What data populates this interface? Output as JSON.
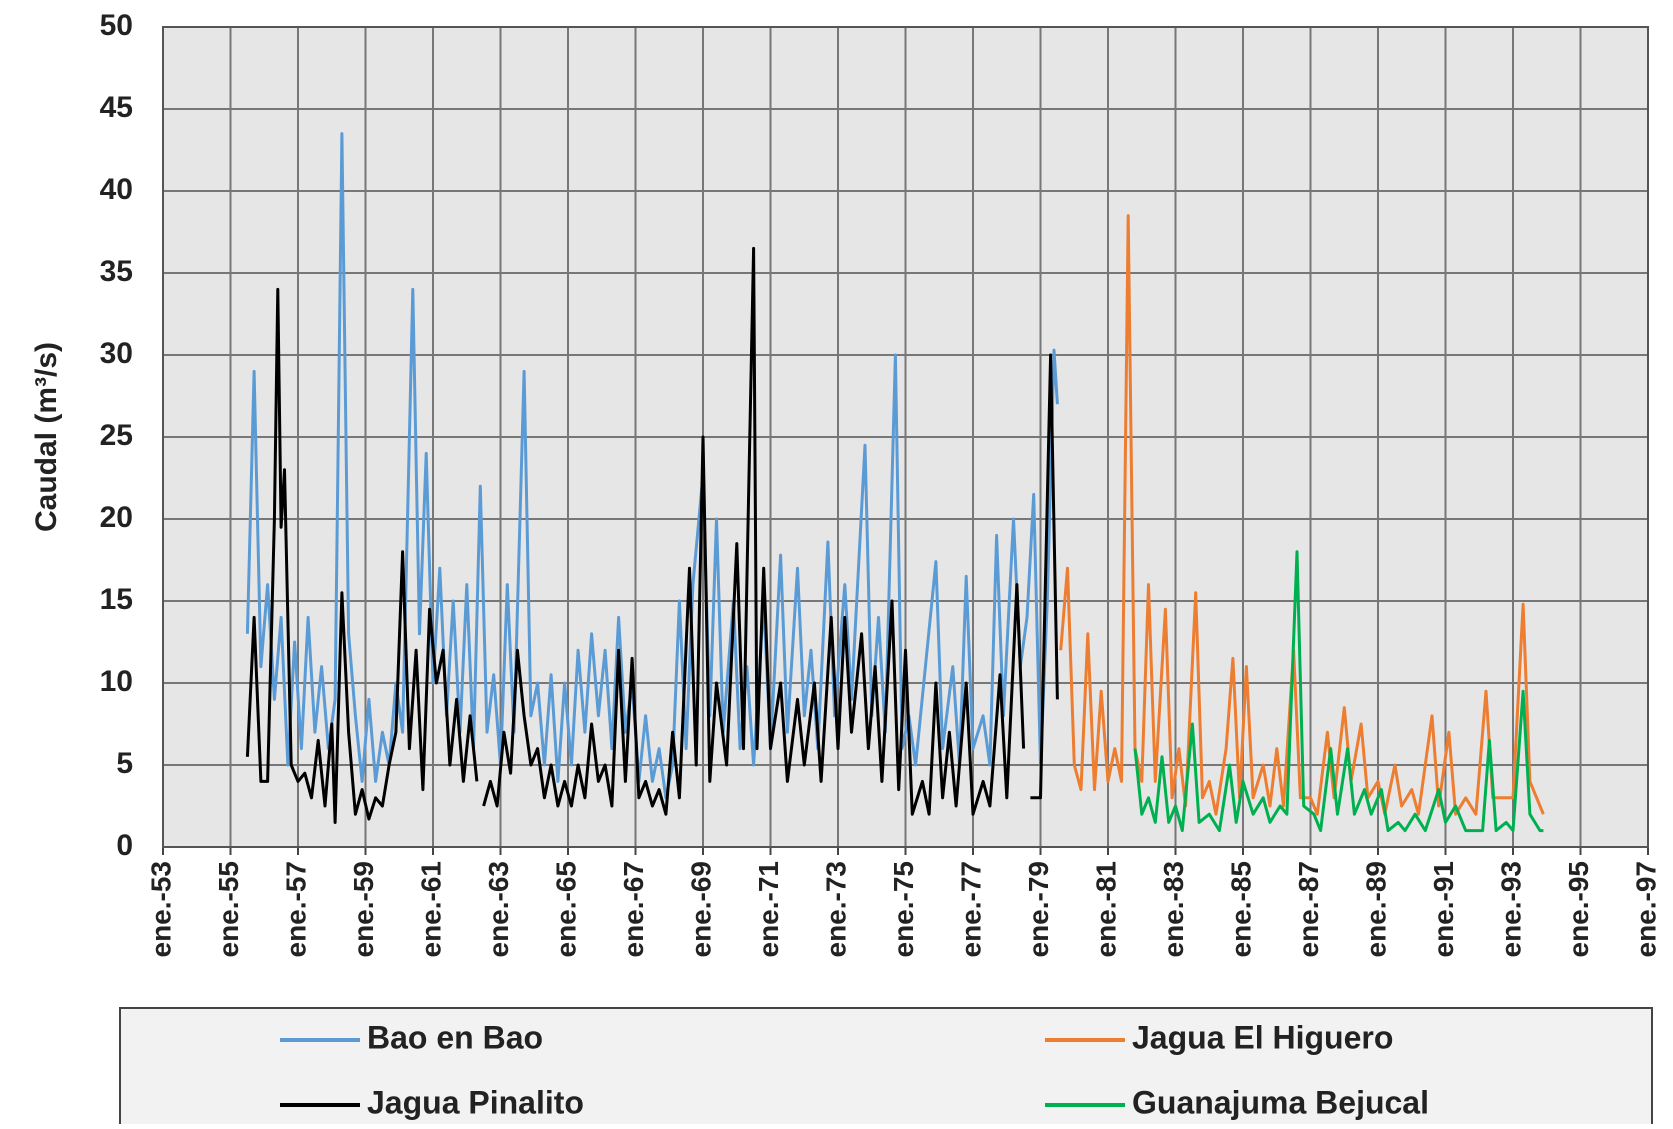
{
  "chart_data": {
    "type": "line",
    "y_label": "Caudal (m³/s)",
    "xlim": [
      1953,
      1997
    ],
    "xticks": [
      {
        "value": 1953,
        "label": "ene.-53"
      },
      {
        "value": 1955,
        "label": "ene.-55"
      },
      {
        "value": 1957,
        "label": "ene.-57"
      },
      {
        "value": 1959,
        "label": "ene.-59"
      },
      {
        "value": 1961,
        "label": "ene.-61"
      },
      {
        "value": 1963,
        "label": "ene.-63"
      },
      {
        "value": 1965,
        "label": "ene.-65"
      },
      {
        "value": 1967,
        "label": "ene.-67"
      },
      {
        "value": 1969,
        "label": "ene.-69"
      },
      {
        "value": 1971,
        "label": "ene.-71"
      },
      {
        "value": 1973,
        "label": "ene.-73"
      },
      {
        "value": 1975,
        "label": "ene.-75"
      },
      {
        "value": 1977,
        "label": "ene.-77"
      },
      {
        "value": 1979,
        "label": "ene.-79"
      },
      {
        "value": 1981,
        "label": "ene.-81"
      },
      {
        "value": 1983,
        "label": "ene.-83"
      },
      {
        "value": 1985,
        "label": "ene.-85"
      },
      {
        "value": 1987,
        "label": "ene.-87"
      },
      {
        "value": 1989,
        "label": "ene.-89"
      },
      {
        "value": 1991,
        "label": "ene.-91"
      },
      {
        "value": 1993,
        "label": "ene.-93"
      },
      {
        "value": 1995,
        "label": "ene.-95"
      },
      {
        "value": 1997,
        "label": "ene.-97"
      }
    ],
    "ylim": [
      0,
      50
    ],
    "yticks": [
      0,
      5,
      10,
      15,
      20,
      25,
      30,
      35,
      40,
      45,
      50
    ],
    "grid": true,
    "legend": "bottom",
    "series": [
      {
        "name": "Bao en Bao",
        "color": "#5b9bd5",
        "x": [
          1955.5,
          1955.7,
          1955.9,
          1956.1,
          1956.3,
          1956.5,
          1956.7,
          1956.9,
          1957.1,
          1957.3,
          1957.5,
          1957.7,
          1957.9,
          1958.1,
          1958.3,
          1958.5,
          1958.7,
          1958.9,
          1959.1,
          1959.3,
          1959.5,
          1959.7,
          1959.9,
          1960.1,
          1960.4,
          1960.6,
          1960.8,
          1961.0,
          1961.2,
          1961.4,
          1961.6,
          1961.8,
          1962.0,
          1962.2,
          1962.4,
          1962.6,
          1962.8,
          1963.0,
          1963.2,
          1963.4,
          1963.7,
          1963.9,
          1964.1,
          1964.3,
          1964.5,
          1964.7,
          1964.9,
          1965.1,
          1965.3,
          1965.5,
          1965.7,
          1965.9,
          1966.1,
          1966.3,
          1966.5,
          1966.7,
          1966.9,
          1967.1,
          1967.3,
          1967.5,
          1967.7,
          1967.9,
          1968.1,
          1968.3,
          1968.5,
          1968.7,
          1969.0,
          1969.2,
          1969.4,
          1969.6,
          1969.9,
          1970.1,
          1970.3,
          1970.5,
          1970.8,
          1971.0,
          1971.3,
          1971.5,
          1971.8,
          1972.0,
          1972.2,
          1972.4,
          1972.7,
          1972.9,
          1973.2,
          1973.4,
          1973.8,
          1974.0,
          1974.2,
          1974.4,
          1974.7,
          1974.9,
          1975.1,
          1975.3,
          1975.9,
          1976.1,
          1976.4,
          1976.6,
          1976.8,
          1977.0,
          1977.3,
          1977.5,
          1977.7,
          1977.9,
          1978.2,
          1978.4,
          1978.6,
          1978.8,
          1979.0,
          1979.2,
          1979.4,
          1979.5
        ],
        "values": [
          13,
          29,
          11,
          16,
          9,
          14,
          5,
          12.5,
          6,
          14,
          7,
          11,
          6,
          9,
          43.5,
          13,
          8,
          4,
          9,
          4,
          7,
          5,
          10,
          7,
          34,
          13,
          24,
          10,
          17,
          8,
          15,
          7,
          16,
          6,
          22,
          7,
          10.5,
          5,
          16,
          7,
          29,
          8,
          10,
          5,
          10.5,
          4,
          10,
          5,
          12,
          7,
          13,
          8,
          12,
          6,
          14,
          7,
          10,
          4,
          8,
          4,
          6,
          3,
          5,
          15,
          6,
          16,
          22.7,
          8,
          20,
          7,
          15,
          6,
          11,
          5,
          15,
          6,
          17.8,
          7,
          17,
          8,
          12,
          6,
          18.6,
          8,
          16,
          9,
          24.5,
          8,
          14,
          7,
          30,
          6,
          8,
          5,
          17.4,
          6,
          11,
          5,
          16.5,
          6,
          8,
          5,
          19,
          8,
          20,
          11,
          14,
          21.5,
          5,
          15,
          30.3,
          27
        ]
      },
      {
        "name": "Jagua El Higuero",
        "color": "#ed7d31",
        "x": [
          1979.6,
          1979.8,
          1980.0,
          1980.2,
          1980.4,
          1980.6,
          1980.8,
          1981.0,
          1981.2,
          1981.4,
          1981.6,
          1981.8,
          1982.0,
          1982.2,
          1982.4,
          1982.7,
          1982.9,
          1983.1,
          1983.3,
          1983.6,
          1983.8,
          1984.0,
          1984.2,
          1984.5,
          1984.7,
          1984.9,
          1985.1,
          1985.3,
          1985.6,
          1985.8,
          1986.0,
          1986.2,
          1986.5,
          1986.7,
          1987.0,
          1987.2,
          1987.5,
          1987.7,
          1988.0,
          1988.2,
          1988.5,
          1988.7,
          1989.0,
          1989.2,
          1989.5,
          1989.7,
          1990.0,
          1990.2,
          1990.6,
          1990.8,
          1991.1,
          1991.3,
          1991.6,
          1991.9,
          1992.2,
          1992.4,
          1992.7,
          1993.0,
          1993.3,
          1993.5,
          1993.8,
          1993.9
        ],
        "values": [
          12,
          17,
          5,
          3.5,
          13,
          3.5,
          9.5,
          4,
          6,
          4,
          38.5,
          6,
          4,
          16,
          4,
          14.5,
          3,
          6,
          2.5,
          15.5,
          3,
          4,
          2,
          6,
          11.5,
          3,
          11,
          3,
          5,
          2.5,
          6,
          2.5,
          12,
          3,
          3,
          2,
          7,
          3,
          8.5,
          4,
          7.5,
          3,
          4,
          2,
          5,
          2.5,
          3.5,
          2,
          8,
          2.5,
          7,
          2,
          3,
          2,
          9.5,
          3,
          3,
          3,
          14.8,
          4,
          2.5,
          2
        ]
      },
      {
        "name": "Jagua Pinalito",
        "color": "#000000",
        "x": [
          1955.5,
          1955.7,
          1955.9,
          1956.1,
          1956.3,
          1956.4,
          1956.5,
          1956.6,
          1956.8,
          1957.0,
          1957.2,
          1957.4,
          1957.6,
          1957.8,
          1958.0,
          1958.1,
          1958.3,
          1958.5,
          1958.7,
          1958.9,
          1959.1,
          1959.3,
          1959.5,
          1959.7,
          1959.9,
          1960.1,
          1960.3,
          1960.5,
          1960.7,
          1960.9,
          1961.1,
          1961.3,
          1961.5,
          1961.7,
          1961.9,
          1962.1,
          1962.3,
          null,
          1962.5,
          1962.7,
          1962.9,
          1963.1,
          1963.3,
          1963.5,
          1963.7,
          1963.9,
          1964.1,
          1964.3,
          1964.5,
          1964.7,
          1964.9,
          1965.1,
          1965.3,
          1965.5,
          1965.7,
          1965.9,
          1966.1,
          1966.3,
          1966.5,
          1966.7,
          1966.9,
          1967.1,
          1967.3,
          1967.5,
          1967.7,
          1967.9,
          1968.1,
          1968.3,
          1968.6,
          1968.8,
          1969.0,
          1969.2,
          1969.4,
          1969.7,
          1970.0,
          1970.2,
          1970.5,
          1970.6,
          1970.8,
          1971.0,
          1971.3,
          1971.5,
          1971.8,
          1972.0,
          1972.3,
          1972.5,
          1972.8,
          1973.0,
          1973.2,
          1973.4,
          1973.7,
          1973.9,
          1974.1,
          1974.3,
          1974.6,
          1974.8,
          1975.0,
          1975.2,
          1975.5,
          1975.7,
          1975.9,
          1976.1,
          1976.3,
          1976.5,
          1976.8,
          1977.0,
          1977.3,
          1977.5,
          1977.8,
          1978.0,
          1978.3,
          1978.5,
          null,
          1978.7,
          1979.0,
          1979.3,
          1979.5
        ],
        "values": [
          5.5,
          14,
          4,
          4,
          20,
          34,
          19.5,
          23,
          5,
          4,
          4.5,
          3,
          6.5,
          2.5,
          7.5,
          1.5,
          15.5,
          7,
          2,
          3.5,
          1.7,
          3,
          2.5,
          5,
          7,
          18,
          6,
          12,
          3.5,
          14.5,
          10,
          12,
          5,
          9,
          4,
          8,
          4,
          null,
          2.5,
          4,
          2.5,
          7,
          4.5,
          12,
          8,
          5,
          6,
          3,
          5,
          2.5,
          4,
          2.5,
          5,
          3,
          7.5,
          4,
          5,
          2.5,
          12,
          4,
          11.5,
          3,
          4,
          2.5,
          3.5,
          2,
          7,
          3,
          17,
          5,
          25,
          4,
          10,
          5,
          18.5,
          6,
          36.5,
          6,
          17,
          6,
          10,
          4,
          9,
          5,
          10,
          4,
          14,
          6,
          14,
          7,
          13,
          6,
          11,
          4,
          15,
          3.5,
          12,
          2,
          4,
          2,
          10,
          3,
          7,
          2.5,
          10,
          2,
          4,
          2.5,
          10.5,
          3,
          16,
          6,
          null,
          3,
          3,
          30,
          9
        ]
      },
      {
        "name": "Guanajuma Bejucal",
        "color": "#00b050",
        "x": [
          1981.8,
          1982.0,
          1982.2,
          1982.4,
          1982.6,
          1982.8,
          1983.0,
          1983.2,
          1983.5,
          1983.7,
          1984.0,
          1984.3,
          1984.6,
          1984.8,
          1985.0,
          1985.3,
          1985.6,
          1985.8,
          1986.1,
          1986.3,
          1986.6,
          1986.8,
          1987.1,
          1987.3,
          1987.6,
          1987.8,
          1988.1,
          1988.3,
          1988.6,
          1988.8,
          1989.1,
          1989.3,
          1989.6,
          1989.8,
          1990.1,
          1990.4,
          1990.8,
          1991.0,
          1991.3,
          1991.6,
          1991.9,
          1992.1,
          1992.3,
          1992.5,
          1992.8,
          1993.0,
          1993.3,
          1993.5,
          1993.8,
          1993.9
        ],
        "values": [
          6,
          2,
          3,
          1.5,
          5.5,
          1.5,
          2.5,
          1,
          7.5,
          1.5,
          2,
          1,
          5,
          1.5,
          4,
          2,
          3,
          1.5,
          2.5,
          2,
          18,
          2.5,
          2,
          1,
          6,
          2,
          6,
          2,
          3.5,
          2,
          3.5,
          1,
          1.5,
          1,
          2,
          1,
          3.5,
          1.5,
          2.5,
          1,
          1,
          1,
          6.5,
          1,
          1.5,
          1,
          9.5,
          2,
          1,
          1
        ]
      }
    ]
  }
}
